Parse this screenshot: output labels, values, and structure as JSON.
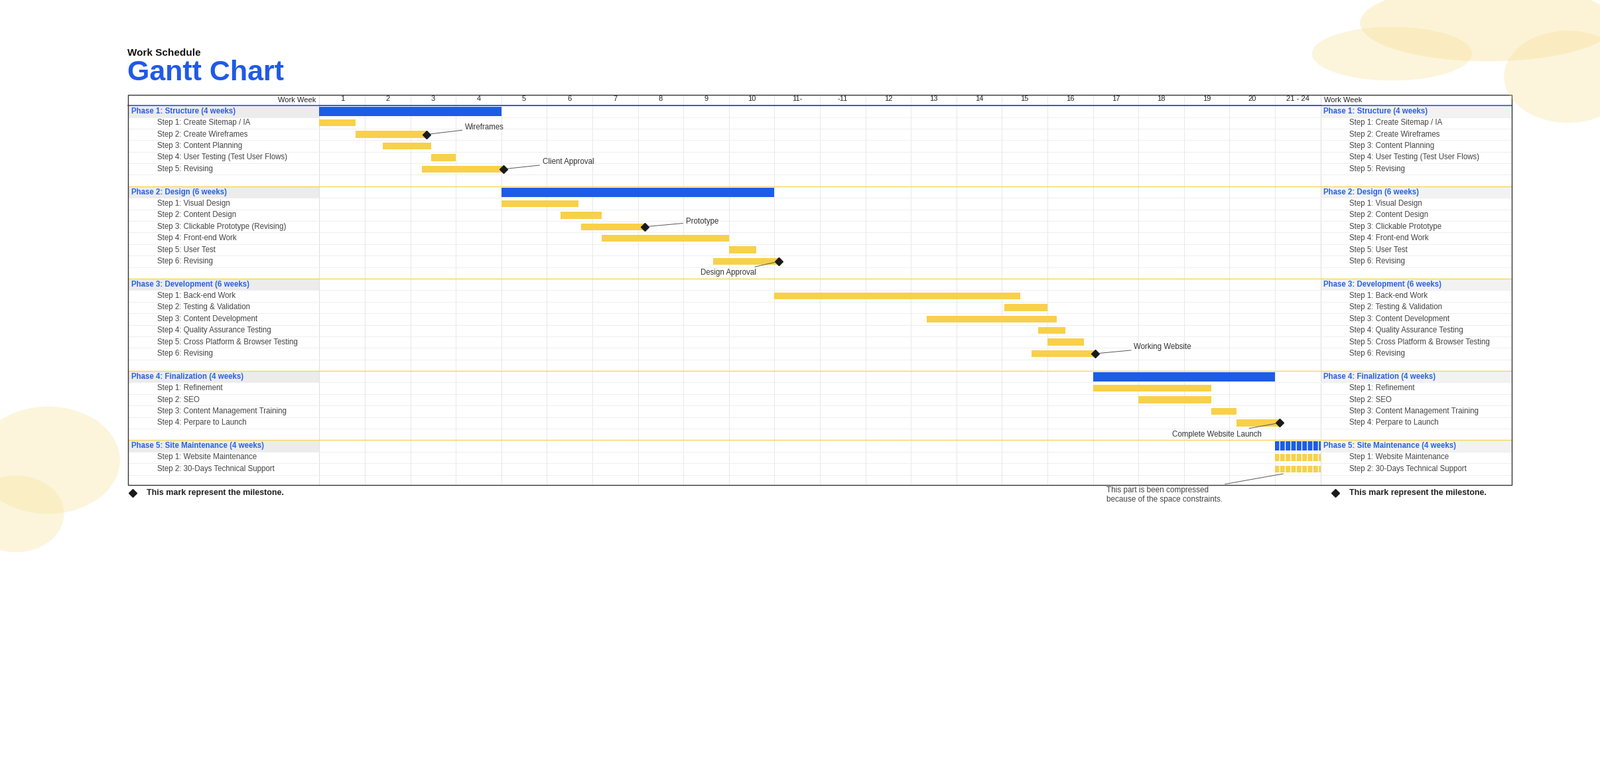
{
  "chart_data": {
    "type": "gantt",
    "subtitle": "Work Schedule",
    "title": "Gantt Chart",
    "axis_label": "Work Week",
    "categories": [
      "1",
      "2",
      "3",
      "4",
      "5",
      "6",
      "7",
      "8",
      "9",
      "10",
      "11-",
      "-11",
      "12",
      "13",
      "14",
      "15",
      "16",
      "17",
      "18",
      "19",
      "20",
      "21 - 24"
    ],
    "xlim": [
      0,
      22
    ],
    "phases": [
      {
        "name": "Phase 1: Structure (4 weeks)",
        "start": 0,
        "end": 4.0,
        "color": "#1d5ce6",
        "tasks": [
          {
            "name": "Step 1: Create Sitemap / IA",
            "start": 0,
            "end": 0.8,
            "color": "#f8d04a"
          },
          {
            "name": "Step 2: Create Wireframes",
            "start": 0.8,
            "end": 2.35,
            "color": "#f8d04a",
            "milestone": "Wireframes"
          },
          {
            "name": "Step 3: Content Planning",
            "start": 1.4,
            "end": 2.45,
            "color": "#f8d04a"
          },
          {
            "name": "Step 4: User Testing (Test User Flows)",
            "start": 2.45,
            "end": 3.0,
            "color": "#f8d04a"
          },
          {
            "name": "Step 5: Revising",
            "start": 2.25,
            "end": 4.05,
            "color": "#f8d04a",
            "milestone": "Client Approval"
          }
        ]
      },
      {
        "name": "Phase 2: Design (6 weeks)",
        "start": 4.0,
        "end": 10.0,
        "color": "#1d5ce6",
        "tasks": [
          {
            "name": "Step 1: Visual Design",
            "start": 4.0,
            "end": 5.7,
            "color": "#f8d04a"
          },
          {
            "name": "Step 2: Content Design",
            "start": 5.3,
            "end": 6.2,
            "color": "#f8d04a"
          },
          {
            "name": "Step 3: Clickable Prototype (Revising)",
            "name_right": "Step 3: Clickable Prototype",
            "start": 5.75,
            "end": 7.15,
            "color": "#f8d04a",
            "milestone": "Prototype"
          },
          {
            "name": "Step 4: Front-end Work",
            "start": 6.2,
            "end": 9.0,
            "color": "#f8d04a"
          },
          {
            "name": "Step 5: User Test",
            "start": 9.0,
            "end": 9.6,
            "color": "#f8d04a"
          },
          {
            "name": "Step 6: Revising",
            "start": 8.65,
            "end": 10.1,
            "color": "#f8d04a",
            "milestone": "Design Approval"
          }
        ]
      },
      {
        "name": "Phase 3: Development (6 weeks)",
        "start": null,
        "end": null,
        "color": "#1d5ce6",
        "tasks": [
          {
            "name": "Step 1: Back-end Work",
            "start": 10.0,
            "end": 15.4,
            "color": "#f8d04a"
          },
          {
            "name": "Step 2: Testing & Validation",
            "start": 15.05,
            "end": 16.0,
            "color": "#f8d04a"
          },
          {
            "name": "Step 3: Content Development",
            "start": 13.35,
            "end": 16.2,
            "color": "#f8d04a"
          },
          {
            "name": "Step 4: Quality Assurance Testing",
            "start": 15.8,
            "end": 16.4,
            "color": "#f8d04a"
          },
          {
            "name": "Step 5: Cross Platform & Browser Testing",
            "start": 16.0,
            "end": 16.8,
            "color": "#f8d04a"
          },
          {
            "name": "Step 6: Revising",
            "start": 15.65,
            "end": 17.05,
            "color": "#f8d04a",
            "milestone": "Working Website"
          }
        ]
      },
      {
        "name": "Phase 4: Finalization (4 weeks)",
        "start": 17.0,
        "end": 21.0,
        "color": "#1d5ce6",
        "tasks": [
          {
            "name": "Step 1: Refinement",
            "start": 17.0,
            "end": 19.6,
            "color": "#f8d04a"
          },
          {
            "name": "Step 2: SEO",
            "start": 18.0,
            "end": 19.6,
            "color": "#f8d04a"
          },
          {
            "name": "Step 3: Content Management Training",
            "start": 19.6,
            "end": 20.15,
            "color": "#f8d04a"
          },
          {
            "name": "Step 4: Perpare to Launch",
            "start": 20.15,
            "end": 21.1,
            "color": "#f8d04a",
            "milestone": "Complete Website Launch"
          }
        ]
      },
      {
        "name": "Phase 5: Site Maintenance (4 weeks)",
        "start": 21.0,
        "end": 22.0,
        "color": "#1d5ce6",
        "tasks": [
          {
            "name": "Step 1: Website Maintenance",
            "start": 21.0,
            "end": 22.0,
            "color": "#f8d04a"
          },
          {
            "name": "Step 2: 30-Days Technical Support",
            "start": 21.0,
            "end": 22.0,
            "color": "#f8d04a"
          }
        ]
      }
    ],
    "milestone_note": "This mark represent the milestone.",
    "compression_note": "This part is been compressed\nbecause of the space constraints."
  }
}
